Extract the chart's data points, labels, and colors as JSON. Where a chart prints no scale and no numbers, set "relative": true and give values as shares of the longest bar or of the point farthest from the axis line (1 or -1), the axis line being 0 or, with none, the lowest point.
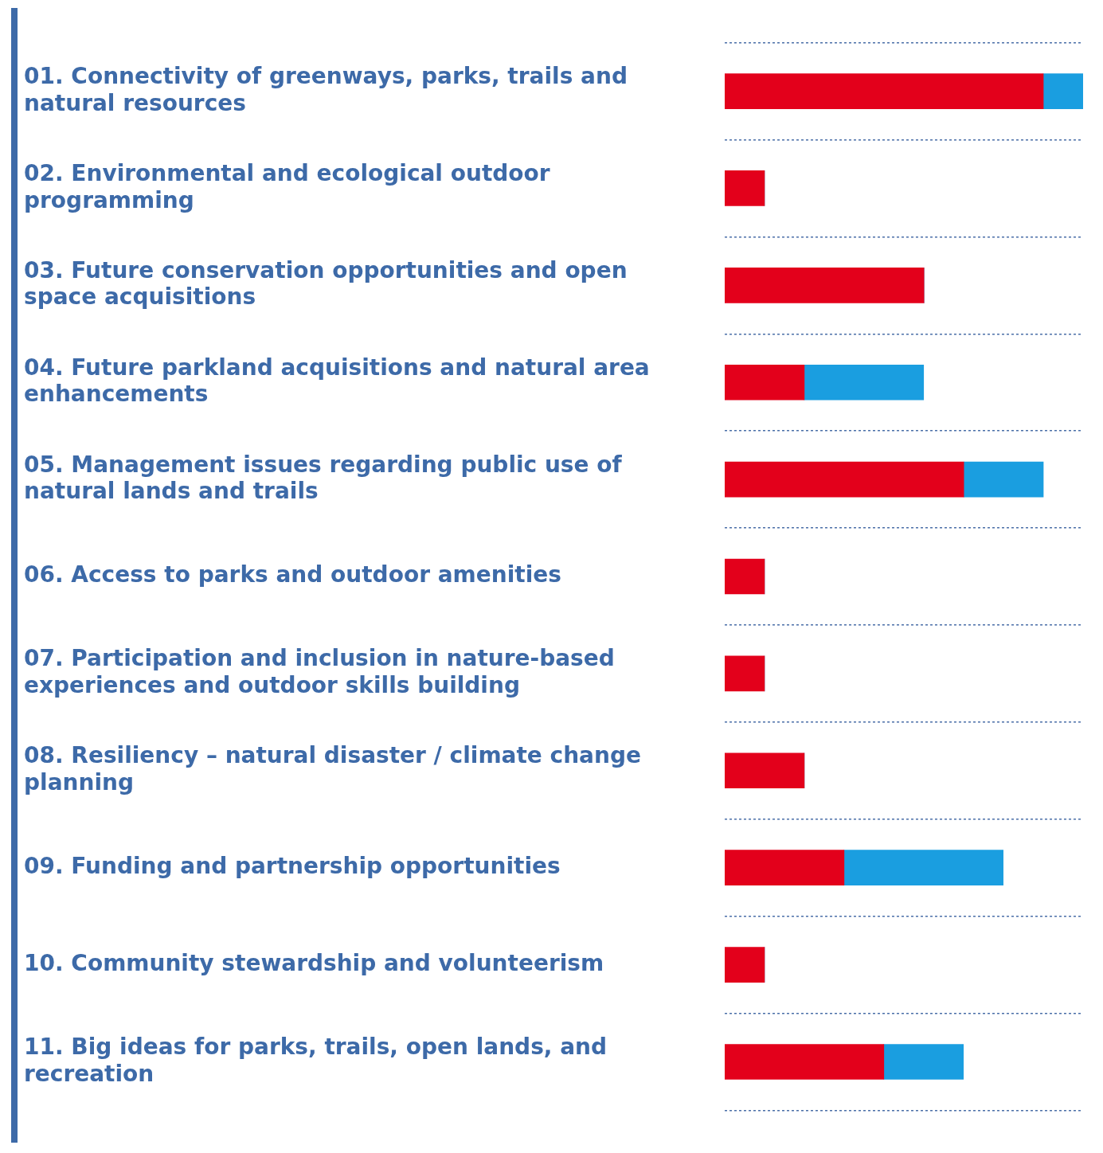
{
  "chart_data": {
    "type": "bar",
    "orientation": "horizontal",
    "stacked": true,
    "relative": true,
    "grid": "y",
    "legend": false,
    "categories": [
      "01. Connectivity of greenways, parks, trails and natural resources",
      "02. Environmental and ecological outdoor programming",
      "03. Future conservation opportunities and open space acquisitions",
      "04. Future parkland acquisitions and natural area enhancements",
      "05. Management issues regarding public use of natural lands and trails",
      "06. Access to parks and outdoor amenities",
      "07. Participation and inclusion in nature-based experiences and outdoor skills building",
      "08. Resiliency – natural disaster / climate change planning",
      "09. Funding and partnership opportunities",
      "10. Community stewardship and volunteerism",
      "11. Big ideas for parks, trails, open lands, and recreation"
    ],
    "series": [
      {
        "color": "#e3001b",
        "values": [
          0.889,
          0.111,
          0.556,
          0.222,
          0.667,
          0.111,
          0.111,
          0.222,
          0.333,
          0.111,
          0.444
        ]
      },
      {
        "color": "#1a9ee0",
        "values": [
          0.111,
          0,
          0,
          0.333,
          0.222,
          0,
          0,
          0,
          0.444,
          0,
          0.222
        ]
      }
    ]
  }
}
